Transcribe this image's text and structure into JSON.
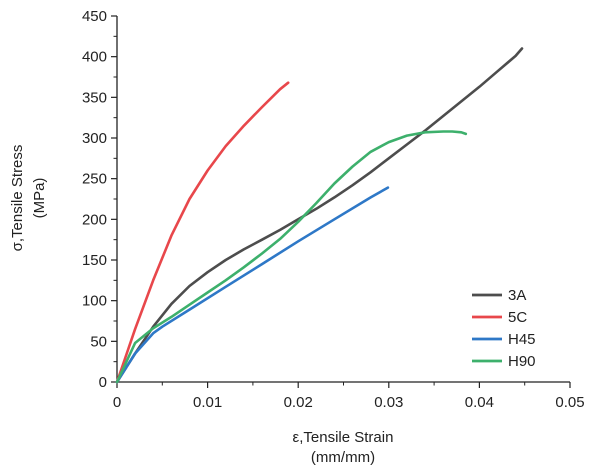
{
  "chart_data": {
    "type": "line",
    "xlabel_line1": "ε,Tensile Strain",
    "xlabel_line2": "(mm/mm)",
    "ylabel_line1": "σ,Tensile Stress",
    "ylabel_line2": "(MPa)",
    "xlim": [
      0,
      0.05
    ],
    "ylim": [
      0,
      450
    ],
    "xticks": [
      0,
      0.01,
      0.02,
      0.03,
      0.04,
      0.05
    ],
    "xtick_labels": [
      "0",
      "0.01",
      "0.02",
      "0.03",
      "0.04",
      "0.05"
    ],
    "yticks": [
      0,
      50,
      100,
      150,
      200,
      250,
      300,
      350,
      400,
      450
    ],
    "ytick_labels": [
      "0",
      "50",
      "100",
      "150",
      "200",
      "250",
      "300",
      "350",
      "400",
      "450"
    ],
    "grid": false,
    "legend_position": "bottom-right",
    "series": [
      {
        "name": "3A",
        "color": "#4d4d4d",
        "x": [
          0,
          0.002,
          0.004,
          0.006,
          0.008,
          0.01,
          0.012,
          0.014,
          0.016,
          0.018,
          0.02,
          0.022,
          0.024,
          0.026,
          0.028,
          0.03,
          0.032,
          0.034,
          0.036,
          0.038,
          0.04,
          0.042,
          0.044,
          0.0447
        ],
        "y": [
          0,
          35,
          68,
          96,
          118,
          135,
          150,
          163,
          175,
          187,
          200,
          213,
          227,
          242,
          258,
          275,
          292,
          309,
          327,
          345,
          363,
          382,
          401,
          410
        ]
      },
      {
        "name": "5C",
        "color": "#e8474b",
        "x": [
          0,
          0.002,
          0.004,
          0.006,
          0.008,
          0.01,
          0.012,
          0.014,
          0.016,
          0.018,
          0.0189
        ],
        "y": [
          0,
          65,
          125,
          180,
          225,
          260,
          290,
          315,
          338,
          360,
          368
        ]
      },
      {
        "name": "H45",
        "color": "#2e78c7",
        "x": [
          0,
          0.002,
          0.004,
          0.005,
          0.008,
          0.012,
          0.016,
          0.02,
          0.024,
          0.028,
          0.0299
        ],
        "y": [
          0,
          35,
          60,
          68,
          89,
          117,
          145,
          173,
          200,
          227,
          239
        ]
      },
      {
        "name": "H90",
        "color": "#3db06c",
        "x": [
          0,
          0.002,
          0.004,
          0.006,
          0.008,
          0.01,
          0.012,
          0.014,
          0.016,
          0.018,
          0.02,
          0.022,
          0.024,
          0.026,
          0.028,
          0.03,
          0.032,
          0.034,
          0.036,
          0.037,
          0.038,
          0.0385
        ],
        "y": [
          0,
          48,
          66,
          80,
          95,
          110,
          125,
          141,
          158,
          176,
          197,
          220,
          244,
          265,
          283,
          295,
          303,
          307,
          308,
          308,
          307,
          305
        ]
      }
    ]
  }
}
